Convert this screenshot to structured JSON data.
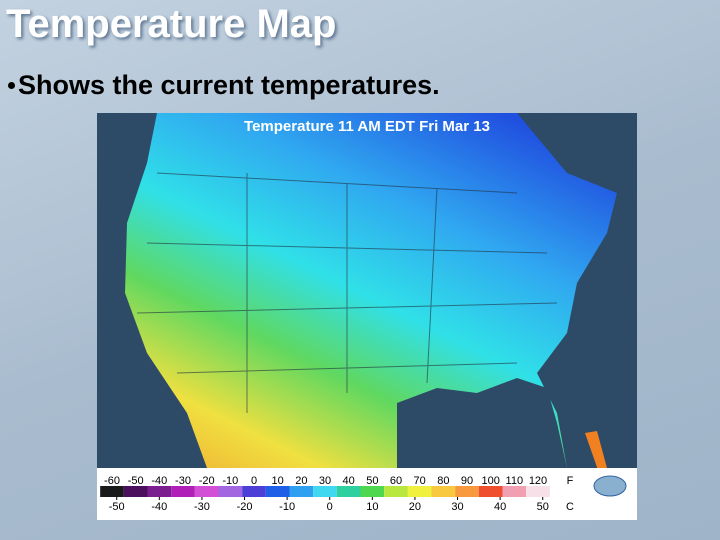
{
  "slide": {
    "title": "Temperature Map",
    "bullet": "Shows the current temperatures.",
    "map": {
      "title": "Temperature 11 AM EDT Fri Mar 13",
      "scale": {
        "fahrenheit": [
          -60,
          -50,
          -40,
          -30,
          -20,
          -10,
          0,
          10,
          20,
          30,
          40,
          50,
          60,
          70,
          80,
          90,
          100,
          110,
          120
        ],
        "fahrenheit_unit": "F",
        "celsius": [
          -50,
          -40,
          -30,
          -20,
          -10,
          0,
          10,
          20,
          30,
          40,
          50
        ],
        "celsius_unit": "C",
        "colors": [
          "#1a1a1a",
          "#4b0f5e",
          "#7b1f8f",
          "#b01fb8",
          "#d24fd6",
          "#a266e0",
          "#4b3fd8",
          "#1f5fe8",
          "#2fa0f0",
          "#3fd8f0",
          "#2fd0a0",
          "#4fd84f",
          "#b8e83f",
          "#f0f03f",
          "#f8c83f",
          "#f8983f",
          "#f04f2f",
          "#f0a0b0",
          "#f8e0e8"
        ]
      }
    }
  }
}
